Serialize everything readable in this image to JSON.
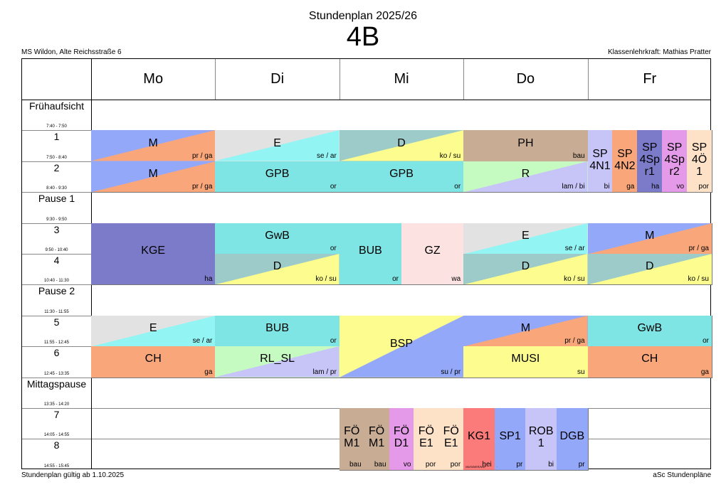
{
  "header": {
    "title": "Stundenplan 2025/26",
    "class_name": "4B",
    "school": "MS Wildon, Alte Reichsstraße 6",
    "teacher": "Klassenlehrkraft: Mathias Pratter"
  },
  "days": [
    "Mo",
    "Di",
    "Mi",
    "Do",
    "Fr"
  ],
  "rows": [
    {
      "name": "Frühaufsicht",
      "time": "7:40 - 7:50"
    },
    {
      "name": "1",
      "time": "7:50 - 8:40"
    },
    {
      "name": "2",
      "time": "8:40 - 9:30"
    },
    {
      "name": "Pause 1",
      "time": "9:30 - 9:50"
    },
    {
      "name": "3",
      "time": "9:50 - 10:40"
    },
    {
      "name": "4",
      "time": "10:40 - 11:30"
    },
    {
      "name": "Pause 2",
      "time": "11:30 - 11:55"
    },
    {
      "name": "5",
      "time": "11:55 - 12:45"
    },
    {
      "name": "6",
      "time": "12:45 - 13:35"
    },
    {
      "name": "Mittagspause",
      "time": "13:35 - 14:20"
    },
    {
      "name": "7",
      "time": "14:05 - 14:55"
    },
    {
      "name": "8",
      "time": "14:55 - 15:45"
    }
  ],
  "lessons": [
    {
      "day": 0,
      "row": 1,
      "span": 1,
      "sub": [
        "M"
      ],
      "teacher": "pr / ga",
      "c1": "#93a8f8",
      "c2": "#f9a77a"
    },
    {
      "day": 0,
      "row": 2,
      "span": 1,
      "sub": [
        "M"
      ],
      "teacher": "pr / ga",
      "c1": "#93a8f8",
      "c2": "#f9a77a"
    },
    {
      "day": 0,
      "row": 4,
      "span": 2,
      "sub": [
        "KGE"
      ],
      "teacher": "ha",
      "c1": "#7b7bc9"
    },
    {
      "day": 0,
      "row": 7,
      "span": 1,
      "sub": [
        "E"
      ],
      "teacher": "se / ar",
      "c1": "#e2e2e2",
      "c2": "#93f4f4"
    },
    {
      "day": 0,
      "row": 8,
      "span": 1,
      "sub": [
        "CH"
      ],
      "teacher": "ga",
      "c1": "#f9a77a"
    },
    {
      "day": 1,
      "row": 1,
      "span": 1,
      "sub": [
        "E"
      ],
      "teacher": "se / ar",
      "c1": "#e2e2e2",
      "c2": "#93f4f4"
    },
    {
      "day": 1,
      "row": 2,
      "span": 1,
      "sub": [
        "GPB"
      ],
      "teacher": "or",
      "c1": "#7fe4e4"
    },
    {
      "day": 1,
      "row": 4,
      "span": 1,
      "sub": [
        "GwB"
      ],
      "teacher": "or",
      "c1": "#7fe4e4"
    },
    {
      "day": 1,
      "row": 5,
      "span": 1,
      "sub": [
        "D"
      ],
      "teacher": "ko / su",
      "c1": "#9ccbc9",
      "c2": "#fdfd8f"
    },
    {
      "day": 1,
      "row": 7,
      "span": 1,
      "sub": [
        "BUB"
      ],
      "teacher": "or",
      "c1": "#7fe4e4"
    },
    {
      "day": 1,
      "row": 8,
      "span": 1,
      "sub": [
        "RL_SL"
      ],
      "teacher": "lam / pr",
      "c1": "#c5fbc0",
      "c2": "#c7c4f8"
    },
    {
      "day": 2,
      "row": 1,
      "span": 1,
      "sub": [
        "D"
      ],
      "teacher": "ko / su",
      "c1": "#9ccbc9",
      "c2": "#fdfd8f"
    },
    {
      "day": 2,
      "row": 2,
      "span": 1,
      "sub": [
        "GPB"
      ],
      "teacher": "or",
      "c1": "#7fe4e4"
    },
    {
      "day": 2,
      "row": 4,
      "span": 2,
      "sub": [
        "BUB"
      ],
      "teacher": "or",
      "c1": "#7fe4e4",
      "x0": 0,
      "x1": 0.5
    },
    {
      "day": 2,
      "row": 4,
      "span": 2,
      "sub": [
        "GZ"
      ],
      "teacher": "wa",
      "c1": "#fde2e2",
      "x0": 0.5,
      "x1": 1
    },
    {
      "day": 2,
      "row": 7,
      "span": 2,
      "sub": [
        "BSP"
      ],
      "teacher": "su / pr",
      "c1": "#fdfd8f",
      "c2": "#93a8f8"
    },
    {
      "day": 2,
      "row": 10,
      "span": 2,
      "sub": [
        "FÖ",
        "M1"
      ],
      "teacher": "bau",
      "c1": "#c8ad94",
      "x0": 0,
      "x1": 0.2
    },
    {
      "day": 2,
      "row": 10,
      "span": 2,
      "sub": [
        "FÖ",
        "M1"
      ],
      "teacher": "bau",
      "c1": "#c8ad94",
      "x0": 0.2,
      "x1": 0.4
    },
    {
      "day": 2,
      "row": 10,
      "span": 2,
      "sub": [
        "FÖ",
        "D1"
      ],
      "teacher": "vo",
      "c1": "#e49ae8",
      "x0": 0.4,
      "x1": 0.6
    },
    {
      "day": 2,
      "row": 10,
      "span": 2,
      "sub": [
        "FÖ",
        "E1"
      ],
      "teacher": "por",
      "c1": "#fde2c8",
      "x0": 0.6,
      "x1": 0.8
    },
    {
      "day": 2,
      "row": 10,
      "span": 2,
      "sub": [
        "FÖ",
        "E1"
      ],
      "teacher": "por",
      "c1": "#fde2c8",
      "x0": 0.8,
      "x1": 1
    },
    {
      "day": 3,
      "row": 1,
      "span": 1,
      "sub": [
        "PH"
      ],
      "teacher": "bau",
      "c1": "#c8ad94"
    },
    {
      "day": 3,
      "row": 2,
      "span": 1,
      "sub": [
        "R"
      ],
      "teacher": "lam / bi",
      "c1": "#c5fbc0",
      "c2": "#c7c4f8"
    },
    {
      "day": 3,
      "row": 4,
      "span": 1,
      "sub": [
        "E"
      ],
      "teacher": "se / ar",
      "c1": "#e2e2e2",
      "c2": "#93f4f4"
    },
    {
      "day": 3,
      "row": 5,
      "span": 1,
      "sub": [
        "D"
      ],
      "teacher": "ko / su",
      "c1": "#9ccbc9",
      "c2": "#fdfd8f"
    },
    {
      "day": 3,
      "row": 7,
      "span": 1,
      "sub": [
        "M"
      ],
      "teacher": "pr / ga",
      "c1": "#93a8f8",
      "c2": "#f9a77a"
    },
    {
      "day": 3,
      "row": 8,
      "span": 1,
      "sub": [
        "MUSI"
      ],
      "teacher": "su",
      "c1": "#fdfd8f"
    },
    {
      "day": 3,
      "row": 10,
      "span": 2,
      "sub": [
        "KG1"
      ],
      "teacher": "hei",
      "c1": "#fb7b7b",
      "x0": 0,
      "x1": 0.25,
      "tl": "MUS/B/ER/NSP"
    },
    {
      "day": 3,
      "row": 10,
      "span": 2,
      "sub": [
        "SP1"
      ],
      "teacher": "pr",
      "c1": "#93a8f8",
      "x0": 0.25,
      "x1": 0.5,
      "tl": "·"
    },
    {
      "day": 3,
      "row": 10,
      "span": 2,
      "sub": [
        "ROB",
        "1"
      ],
      "teacher": "bi",
      "c1": "#c7c4f8",
      "x0": 0.5,
      "x1": 0.75
    },
    {
      "day": 3,
      "row": 10,
      "span": 2,
      "sub": [
        "DGB"
      ],
      "teacher": "pr",
      "c1": "#93a8f8",
      "x0": 0.75,
      "x1": 1
    },
    {
      "day": 4,
      "row": 1,
      "span": 2,
      "sub": [
        "SP",
        "4N1"
      ],
      "teacher": "bi",
      "c1": "#c7c4f8",
      "x0": 0,
      "x1": 0.2
    },
    {
      "day": 4,
      "row": 1,
      "span": 2,
      "sub": [
        "SP",
        "4N2"
      ],
      "teacher": "ga",
      "c1": "#f9a77a",
      "x0": 0.2,
      "x1": 0.4
    },
    {
      "day": 4,
      "row": 1,
      "span": 2,
      "sub": [
        "SP",
        "4Sp",
        "r1"
      ],
      "teacher": "ha",
      "c1": "#7b7bc9",
      "x0": 0.4,
      "x1": 0.6
    },
    {
      "day": 4,
      "row": 1,
      "span": 2,
      "sub": [
        "SP",
        "4Sp",
        "r2"
      ],
      "teacher": "vo",
      "c1": "#e49ae8",
      "x0": 0.6,
      "x1": 0.8
    },
    {
      "day": 4,
      "row": 1,
      "span": 2,
      "sub": [
        "SP",
        "4Ö",
        "1"
      ],
      "teacher": "por",
      "c1": "#fde2c8",
      "x0": 0.8,
      "x1": 1
    },
    {
      "day": 4,
      "row": 4,
      "span": 1,
      "sub": [
        "M"
      ],
      "teacher": "pr / ga",
      "c1": "#93a8f8",
      "c2": "#f9a77a"
    },
    {
      "day": 4,
      "row": 5,
      "span": 1,
      "sub": [
        "D"
      ],
      "teacher": "ko / su",
      "c1": "#9ccbc9",
      "c2": "#fdfd8f"
    },
    {
      "day": 4,
      "row": 7,
      "span": 1,
      "sub": [
        "GwB"
      ],
      "teacher": "or",
      "c1": "#7fe4e4"
    },
    {
      "day": 4,
      "row": 8,
      "span": 1,
      "sub": [
        "CH"
      ],
      "teacher": "ga",
      "c1": "#f9a77a"
    }
  ],
  "footer": {
    "valid_from": "Stundenplan gültig ab 1.10.2025",
    "vendor": "aSc Stundenpläne"
  }
}
